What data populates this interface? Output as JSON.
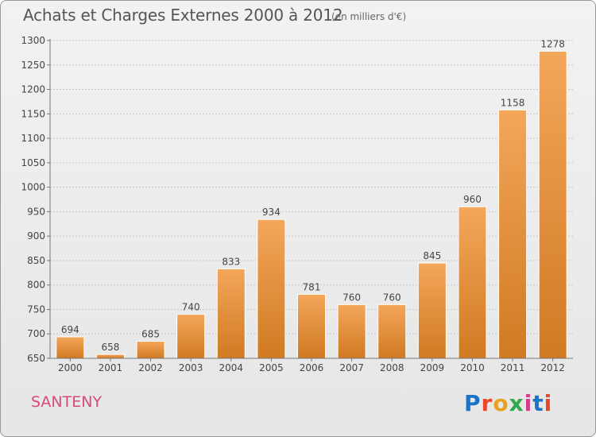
{
  "header": {
    "title": "Achats et Charges Externes 2000 à 2012",
    "subtitle": "(en milliers d'€)"
  },
  "footer": {
    "commune": "SANTENY",
    "logo_text": "Proxiti",
    "logo_colors": [
      "#1a73c8",
      "#e8462b",
      "#e8a020",
      "#2fa84f",
      "#d63a8a",
      "#1a73c8",
      "#e8462b"
    ]
  },
  "colors": {
    "bar_light": "#f4a65a",
    "bar_dark": "#d07a22",
    "commune": "#d64a7a"
  },
  "chart_data": {
    "type": "bar",
    "categories": [
      "2000",
      "2001",
      "2002",
      "2003",
      "2004",
      "2005",
      "2006",
      "2007",
      "2008",
      "2009",
      "2010",
      "2011",
      "2012"
    ],
    "values": [
      694,
      658,
      685,
      740,
      833,
      934,
      781,
      760,
      760,
      845,
      960,
      1158,
      1278
    ],
    "ylim": [
      650,
      1300
    ],
    "yticks": [
      650,
      700,
      750,
      800,
      850,
      900,
      950,
      1000,
      1050,
      1100,
      1150,
      1200,
      1250,
      1300
    ],
    "grid": true
  }
}
